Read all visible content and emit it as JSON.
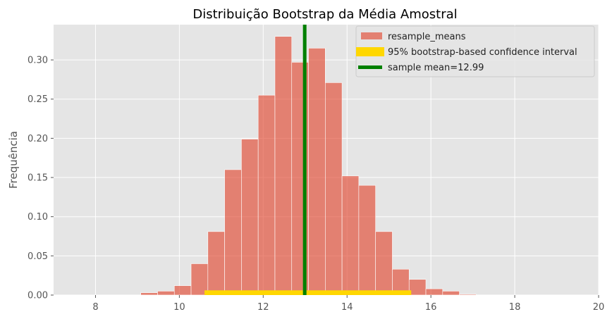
{
  "chart_data": {
    "type": "bar",
    "title": "Distribuição Bootstrap da Média Amostral",
    "xlabel": "",
    "ylabel": "Frequência",
    "xlim": [
      7.0,
      20.0
    ],
    "ylim": [
      0.0,
      0.345
    ],
    "xticks": [
      8,
      10,
      12,
      14,
      16,
      18,
      20
    ],
    "yticks": [
      0.0,
      0.05,
      0.1,
      0.15,
      0.2,
      0.25,
      0.3
    ],
    "grid": true,
    "legend_position": "top-right",
    "bin_edges": [
      9.08,
      9.48,
      9.88,
      10.28,
      10.68,
      11.08,
      11.48,
      11.88,
      12.28,
      12.68,
      13.08,
      13.48,
      13.88,
      14.28,
      14.68,
      15.08,
      15.48,
      15.88,
      16.28,
      16.68,
      17.08,
      17.48
    ],
    "series": [
      {
        "name": "resample_means",
        "color": "#E24A33",
        "values": [
          0.003,
          0.005,
          0.012,
          0.04,
          0.081,
          0.16,
          0.199,
          0.255,
          0.33,
          0.297,
          0.315,
          0.271,
          0.152,
          0.14,
          0.081,
          0.033,
          0.02,
          0.008,
          0.005,
          0.001,
          0.0
        ]
      }
    ],
    "confidence_interval": {
      "label": "95% bootstrap-based confidence interval",
      "color": "#FFD700",
      "lower": 10.6,
      "upper": 15.53,
      "height": 0.006
    },
    "mean_line": {
      "label": "sample mean=12.99",
      "color": "#008000",
      "value": 12.99
    },
    "colors": {
      "plot_background": "#E5E5E5",
      "grid": "#FFFFFF",
      "tick_text": "#555555"
    }
  }
}
